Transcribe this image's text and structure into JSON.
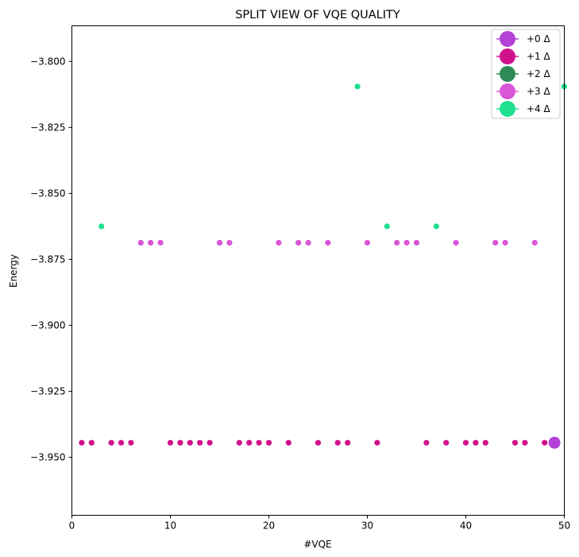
{
  "chart_data": {
    "type": "scatter",
    "title": "SPLIT VIEW OF VQE QUALITY",
    "xlabel": "#VQE",
    "ylabel": "Energy",
    "xlim": [
      0,
      50
    ],
    "ylim": [
      -3.972,
      -3.7865
    ],
    "xticks": [
      0,
      10,
      20,
      30,
      40,
      50
    ],
    "yticks": [
      -3.8,
      -3.825,
      -3.85,
      -3.875,
      -3.9,
      -3.925,
      -3.95
    ],
    "ytick_labels": [
      "−3.800",
      "−3.825",
      "−3.850",
      "−3.875",
      "−3.900",
      "−3.925",
      "−3.950"
    ],
    "grid": false,
    "legend_position": "top-right",
    "series": [
      {
        "name": "+0 Δ",
        "color": "#b542d6",
        "points": []
      },
      {
        "name": "+1 Δ",
        "color": "#d1118c",
        "points": [
          [
            1,
            -3.9445
          ],
          [
            2,
            -3.9445
          ],
          [
            4,
            -3.9445
          ],
          [
            5,
            -3.9445
          ],
          [
            6,
            -3.9445
          ],
          [
            10,
            -3.9445
          ],
          [
            11,
            -3.9445
          ],
          [
            12,
            -3.9445
          ],
          [
            13,
            -3.9445
          ],
          [
            14,
            -3.9445
          ],
          [
            17,
            -3.9445
          ],
          [
            18,
            -3.9445
          ],
          [
            19,
            -3.9445
          ],
          [
            20,
            -3.9445
          ],
          [
            22,
            -3.9445
          ],
          [
            25,
            -3.9445
          ],
          [
            27,
            -3.9445
          ],
          [
            28,
            -3.9445
          ],
          [
            31,
            -3.9445
          ],
          [
            36,
            -3.9445
          ],
          [
            38,
            -3.9445
          ],
          [
            40,
            -3.9445
          ],
          [
            41,
            -3.9445
          ],
          [
            42,
            -3.9445
          ],
          [
            45,
            -3.9445
          ],
          [
            46,
            -3.9445
          ],
          [
            48,
            -3.9445
          ]
        ]
      },
      {
        "name": "+2 Δ",
        "color": "#2e8b57",
        "points": []
      },
      {
        "name": "+3 Δ",
        "color": "#da55d8",
        "points": [
          [
            7,
            -3.8687
          ],
          [
            8,
            -3.8687
          ],
          [
            9,
            -3.8687
          ],
          [
            15,
            -3.8687
          ],
          [
            16,
            -3.8687
          ],
          [
            21,
            -3.8687
          ],
          [
            23,
            -3.8687
          ],
          [
            24,
            -3.8687
          ],
          [
            26,
            -3.8687
          ],
          [
            30,
            -3.8687
          ],
          [
            33,
            -3.8687
          ],
          [
            34,
            -3.8687
          ],
          [
            35,
            -3.8687
          ],
          [
            39,
            -3.8687
          ],
          [
            43,
            -3.8687
          ],
          [
            44,
            -3.8687
          ],
          [
            47,
            -3.8687
          ]
        ]
      },
      {
        "name": "+4 Δ",
        "color": "#1ee090",
        "points": [
          [
            3,
            -3.8625
          ],
          [
            29,
            -3.8095
          ],
          [
            32,
            -3.8625
          ],
          [
            37,
            -3.8625
          ],
          [
            50,
            -3.8095
          ]
        ]
      }
    ],
    "highlight": {
      "color": "#b542d6",
      "point": [
        49,
        -3.9445
      ]
    }
  }
}
